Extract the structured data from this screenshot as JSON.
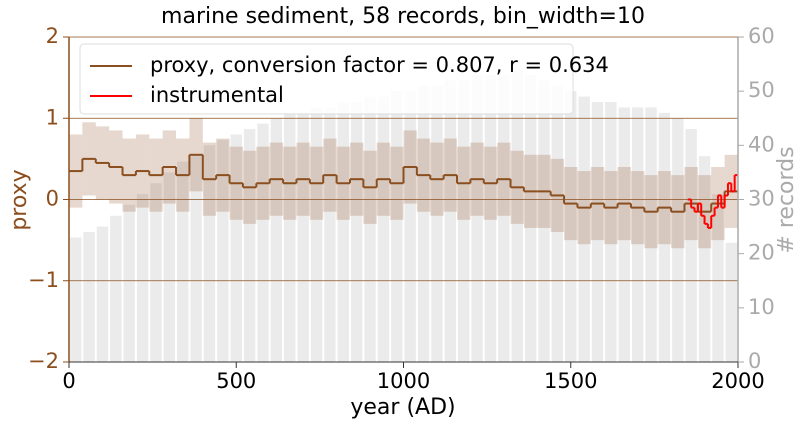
{
  "chart_data": {
    "type": "step",
    "title": "marine sediment, 58 records, bin_width=10",
    "xlabel": "year (AD)",
    "ylabel": "proxy",
    "y2label": "# records",
    "xlim": [
      0,
      2000
    ],
    "xticks": [
      0,
      500,
      1000,
      1500,
      2000
    ],
    "ylim": [
      -2,
      2
    ],
    "yticks": [
      {
        "value": -2,
        "label": "−2"
      },
      {
        "value": -1,
        "label": "−1"
      },
      0,
      1,
      2
    ],
    "y2lim": [
      0,
      60
    ],
    "y2ticks": [
      0,
      10,
      20,
      30,
      40,
      50,
      60
    ],
    "grid": true,
    "legend": "upper left",
    "x": [
      0,
      40,
      80,
      120,
      160,
      200,
      240,
      280,
      320,
      360,
      400,
      440,
      480,
      520,
      560,
      600,
      640,
      680,
      720,
      760,
      800,
      840,
      880,
      920,
      960,
      1000,
      1040,
      1080,
      1120,
      1160,
      1200,
      1240,
      1280,
      1320,
      1360,
      1400,
      1440,
      1480,
      1520,
      1560,
      1600,
      1640,
      1680,
      1720,
      1760,
      1800,
      1840,
      1880,
      1920,
      1960
    ],
    "series": [
      {
        "name": "proxy, conversion factor = 0.807, r = 0.634",
        "color": "#8b4f1f",
        "values": [
          0.35,
          0.5,
          0.45,
          0.4,
          0.3,
          0.35,
          0.3,
          0.4,
          0.3,
          0.55,
          0.25,
          0.3,
          0.2,
          0.15,
          0.2,
          0.25,
          0.2,
          0.25,
          0.2,
          0.3,
          0.2,
          0.25,
          0.15,
          0.25,
          0.2,
          0.4,
          0.3,
          0.25,
          0.3,
          0.2,
          0.25,
          0.2,
          0.25,
          0.15,
          0.1,
          0.1,
          0.05,
          -0.05,
          -0.1,
          -0.05,
          -0.1,
          -0.05,
          -0.1,
          -0.15,
          -0.1,
          -0.15,
          -0.05,
          -0.15,
          -0.05,
          0.1
        ],
        "lower": [
          -0.1,
          0.05,
          0,
          -0.05,
          -0.15,
          -0.1,
          -0.15,
          -0.05,
          -0.15,
          0.1,
          -0.2,
          -0.15,
          -0.25,
          -0.3,
          -0.25,
          -0.2,
          -0.25,
          -0.2,
          -0.25,
          -0.15,
          -0.25,
          -0.2,
          -0.3,
          -0.2,
          -0.25,
          -0.05,
          -0.15,
          -0.2,
          -0.15,
          -0.25,
          -0.2,
          -0.25,
          -0.2,
          -0.3,
          -0.35,
          -0.35,
          -0.4,
          -0.5,
          -0.55,
          -0.5,
          -0.55,
          -0.5,
          -0.55,
          -0.6,
          -0.55,
          -0.6,
          -0.5,
          -0.6,
          -0.5,
          -0.35
        ],
        "upper": [
          0.8,
          0.95,
          0.9,
          0.85,
          0.75,
          0.8,
          0.75,
          0.85,
          0.75,
          1.0,
          0.7,
          0.75,
          0.65,
          0.6,
          0.65,
          0.7,
          0.65,
          0.7,
          0.65,
          0.75,
          0.65,
          0.7,
          0.6,
          0.7,
          0.65,
          0.85,
          0.75,
          0.7,
          0.75,
          0.65,
          0.7,
          0.65,
          0.7,
          0.6,
          0.55,
          0.55,
          0.5,
          0.4,
          0.35,
          0.4,
          0.35,
          0.4,
          0.35,
          0.3,
          0.35,
          0.3,
          0.4,
          0.3,
          0.4,
          0.55
        ]
      },
      {
        "name": "instrumental",
        "color": "#ff0000",
        "x": [
          1850,
          1860,
          1870,
          1880,
          1890,
          1900,
          1910,
          1920,
          1930,
          1940,
          1950,
          1960,
          1970,
          1980,
          1990
        ],
        "values": [
          0,
          -0.1,
          -0.15,
          -0.05,
          -0.2,
          -0.3,
          -0.35,
          -0.2,
          -0.1,
          0.05,
          -0.1,
          0.05,
          0.2,
          0.1,
          0.3
        ]
      },
      {
        "name": "# records",
        "color": "#e4e4e4",
        "axis": "y2",
        "values": [
          23,
          24,
          25,
          27,
          29,
          31,
          33,
          35,
          37,
          38,
          40,
          41,
          42,
          43,
          44,
          45,
          46,
          46,
          47,
          47,
          48,
          48,
          49,
          49,
          50,
          50,
          51,
          51,
          52,
          52,
          53,
          53,
          53,
          54,
          53,
          52,
          51,
          50,
          49,
          48,
          48,
          47,
          47,
          47,
          46,
          45,
          43,
          38,
          31,
          22
        ]
      }
    ]
  }
}
